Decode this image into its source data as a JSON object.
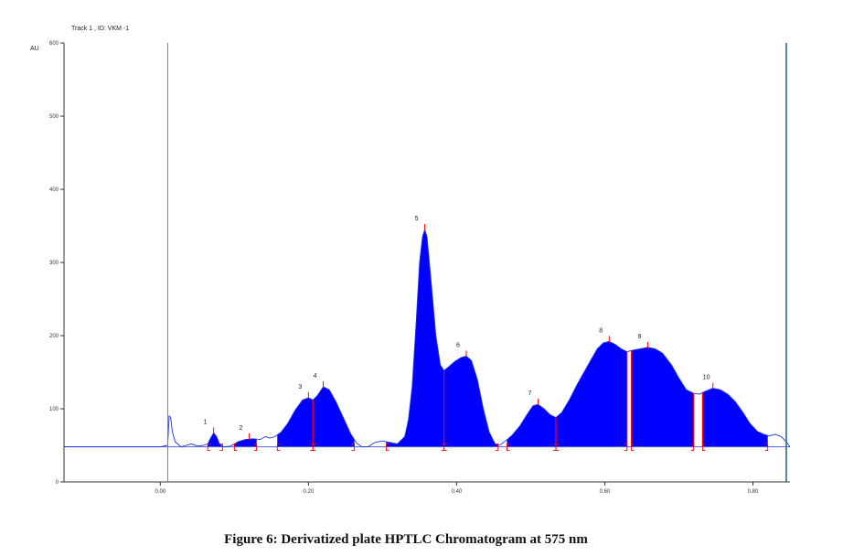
{
  "track_label": "Track  1 , ID: VKM -1",
  "caption": "Figure 6: Derivatized plate HPTLC Chromatogram at 575 nm",
  "chart_data": {
    "type": "area",
    "title": "",
    "ylabel": "AU",
    "xlabel": "",
    "xlim": [
      -0.13,
      0.85
    ],
    "ylim": [
      0,
      600
    ],
    "x_ticks": [
      0.0,
      0.2,
      0.4,
      0.6,
      0.8
    ],
    "x_tick_labels": [
      "0.00",
      "0.20",
      "0.40",
      "0.60",
      "0.80"
    ],
    "y_ticks": [
      0,
      100,
      200,
      300,
      400,
      500,
      600
    ],
    "y_tick_labels": [
      "0",
      "100",
      "200",
      "300",
      "400",
      "500",
      "600"
    ],
    "baseline": 48,
    "start_line": 0.01,
    "end_line": 0.845,
    "fill_color": "#0000ff",
    "line_color": "#2233dd",
    "marker_color": "#ff0000",
    "grid": false,
    "curve": [
      [
        -0.13,
        48
      ],
      [
        0.0,
        48
      ],
      [
        0.01,
        50
      ],
      [
        0.012,
        90
      ],
      [
        0.014,
        88
      ],
      [
        0.016,
        70
      ],
      [
        0.02,
        55
      ],
      [
        0.028,
        48
      ],
      [
        0.035,
        50
      ],
      [
        0.042,
        52
      ],
      [
        0.05,
        49
      ],
      [
        0.058,
        50
      ],
      [
        0.064,
        52
      ],
      [
        0.068,
        60
      ],
      [
        0.072,
        67
      ],
      [
        0.076,
        62
      ],
      [
        0.08,
        52
      ],
      [
        0.085,
        48
      ],
      [
        0.095,
        49
      ],
      [
        0.105,
        55
      ],
      [
        0.115,
        58
      ],
      [
        0.125,
        59
      ],
      [
        0.135,
        58
      ],
      [
        0.142,
        62
      ],
      [
        0.148,
        60
      ],
      [
        0.155,
        62
      ],
      [
        0.163,
        68
      ],
      [
        0.172,
        80
      ],
      [
        0.182,
        98
      ],
      [
        0.192,
        112
      ],
      [
        0.2,
        115
      ],
      [
        0.206,
        112
      ],
      [
        0.212,
        118
      ],
      [
        0.22,
        130
      ],
      [
        0.228,
        126
      ],
      [
        0.237,
        110
      ],
      [
        0.247,
        88
      ],
      [
        0.257,
        66
      ],
      [
        0.265,
        53
      ],
      [
        0.272,
        48
      ],
      [
        0.28,
        48
      ],
      [
        0.29,
        54
      ],
      [
        0.3,
        56
      ],
      [
        0.31,
        54
      ],
      [
        0.32,
        52
      ],
      [
        0.33,
        62
      ],
      [
        0.335,
        85
      ],
      [
        0.34,
        130
      ],
      [
        0.345,
        210
      ],
      [
        0.35,
        300
      ],
      [
        0.354,
        335
      ],
      [
        0.357,
        345
      ],
      [
        0.36,
        335
      ],
      [
        0.365,
        280
      ],
      [
        0.372,
        200
      ],
      [
        0.378,
        160
      ],
      [
        0.383,
        152
      ],
      [
        0.39,
        158
      ],
      [
        0.398,
        165
      ],
      [
        0.406,
        170
      ],
      [
        0.413,
        172
      ],
      [
        0.42,
        166
      ],
      [
        0.428,
        140
      ],
      [
        0.436,
        100
      ],
      [
        0.444,
        68
      ],
      [
        0.452,
        52
      ],
      [
        0.458,
        50
      ],
      [
        0.466,
        56
      ],
      [
        0.475,
        64
      ],
      [
        0.485,
        76
      ],
      [
        0.495,
        92
      ],
      [
        0.503,
        104
      ],
      [
        0.51,
        106
      ],
      [
        0.518,
        100
      ],
      [
        0.526,
        92
      ],
      [
        0.534,
        88
      ],
      [
        0.542,
        95
      ],
      [
        0.552,
        112
      ],
      [
        0.562,
        132
      ],
      [
        0.572,
        150
      ],
      [
        0.582,
        168
      ],
      [
        0.59,
        182
      ],
      [
        0.598,
        190
      ],
      [
        0.606,
        192
      ],
      [
        0.614,
        188
      ],
      [
        0.622,
        182
      ],
      [
        0.63,
        178
      ],
      [
        0.638,
        180
      ],
      [
        0.648,
        182
      ],
      [
        0.658,
        184
      ],
      [
        0.668,
        182
      ],
      [
        0.678,
        176
      ],
      [
        0.69,
        160
      ],
      [
        0.7,
        142
      ],
      [
        0.71,
        126
      ],
      [
        0.72,
        121
      ],
      [
        0.728,
        120
      ],
      [
        0.736,
        124
      ],
      [
        0.746,
        128
      ],
      [
        0.756,
        126
      ],
      [
        0.766,
        120
      ],
      [
        0.776,
        110
      ],
      [
        0.786,
        96
      ],
      [
        0.796,
        80
      ],
      [
        0.806,
        69
      ],
      [
        0.815,
        65
      ],
      [
        0.822,
        63
      ],
      [
        0.83,
        65
      ],
      [
        0.838,
        62
      ],
      [
        0.845,
        55
      ],
      [
        0.85,
        48
      ]
    ],
    "peaks": [
      {
        "label": "1",
        "rf": 0.072,
        "height": 67,
        "start": 0.064,
        "end": 0.084
      },
      {
        "label": "2",
        "rf": 0.12,
        "height": 59,
        "start": 0.1,
        "end": 0.13
      },
      {
        "label": "3",
        "rf": 0.2,
        "height": 115,
        "start": 0.158,
        "end": 0.206
      },
      {
        "label": "4",
        "rf": 0.22,
        "height": 130,
        "start": 0.206,
        "end": 0.262
      },
      {
        "label": "5",
        "rf": 0.357,
        "height": 345,
        "start": 0.305,
        "end": 0.383
      },
      {
        "label": "6",
        "rf": 0.413,
        "height": 172,
        "start": 0.383,
        "end": 0.456
      },
      {
        "label": "7",
        "rf": 0.51,
        "height": 106,
        "start": 0.468,
        "end": 0.534
      },
      {
        "label": "8",
        "rf": 0.606,
        "height": 192,
        "start": 0.534,
        "end": 0.63
      },
      {
        "label": "9",
        "rf": 0.658,
        "height": 184,
        "start": 0.636,
        "end": 0.72
      },
      {
        "label": "10",
        "rf": 0.746,
        "height": 128,
        "start": 0.732,
        "end": 0.82
      }
    ],
    "filled_ranges": [
      [
        0.064,
        0.084
      ],
      [
        0.1,
        0.13
      ],
      [
        0.158,
        0.262
      ],
      [
        0.305,
        0.456
      ],
      [
        0.468,
        0.63
      ],
      [
        0.636,
        0.72
      ],
      [
        0.732,
        0.82
      ]
    ],
    "divider_rfs": [
      0.206,
      0.383,
      0.534,
      0.63,
      0.636,
      0.72,
      0.732
    ]
  }
}
